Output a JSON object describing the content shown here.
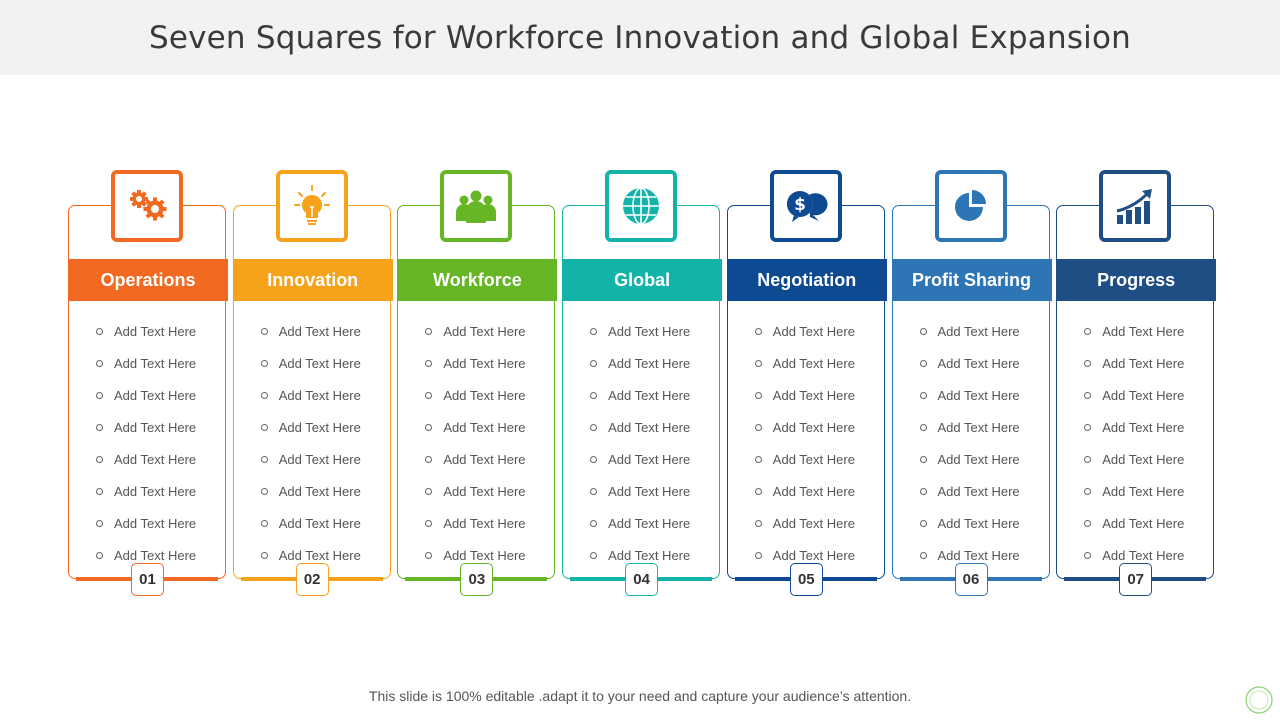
{
  "title": "Seven Squares for Workforce Innovation and Global Expansion",
  "columns": [
    {
      "label": "Operations",
      "number": "01",
      "color": "#f26a21",
      "icon": "gears-icon",
      "items": [
        "Add Text Here",
        "Add Text Here",
        "Add Text Here",
        "Add Text Here",
        "Add Text Here",
        "Add Text Here",
        "Add Text Here",
        "Add Text Here"
      ]
    },
    {
      "label": "Innovation",
      "number": "02",
      "color": "#f7a21b",
      "icon": "lightbulb-icon",
      "items": [
        "Add Text Here",
        "Add Text Here",
        "Add Text Here",
        "Add Text Here",
        "Add Text Here",
        "Add Text Here",
        "Add Text Here",
        "Add Text Here"
      ]
    },
    {
      "label": "Workforce",
      "number": "03",
      "color": "#67b626",
      "icon": "people-icon",
      "items": [
        "Add Text Here",
        "Add Text Here",
        "Add Text Here",
        "Add Text Here",
        "Add Text Here",
        "Add Text Here",
        "Add Text Here",
        "Add Text Here"
      ]
    },
    {
      "label": "Global",
      "number": "04",
      "color": "#13b3a9",
      "icon": "globe-icon",
      "items": [
        "Add Text Here",
        "Add Text Here",
        "Add Text Here",
        "Add Text Here",
        "Add Text Here",
        "Add Text Here",
        "Add Text Here",
        "Add Text Here"
      ]
    },
    {
      "label": "Negotiation",
      "number": "05",
      "color": "#0d4a91",
      "icon": "dollar-chat-icon",
      "items": [
        "Add Text Here",
        "Add Text Here",
        "Add Text Here",
        "Add Text Here",
        "Add Text Here",
        "Add Text Here",
        "Add Text Here",
        "Add Text Here"
      ]
    },
    {
      "label": "Profit Sharing",
      "number": "06",
      "color": "#2e75b6",
      "icon": "pie-chart-icon",
      "items": [
        "Add Text Here",
        "Add Text Here",
        "Add Text Here",
        "Add Text Here",
        "Add Text Here",
        "Add Text Here",
        "Add Text Here",
        "Add Text Here"
      ]
    },
    {
      "label": "Progress",
      "number": "07",
      "color": "#1f4e84",
      "icon": "growth-chart-icon",
      "items": [
        "Add Text Here",
        "Add Text Here",
        "Add Text Here",
        "Add Text Here",
        "Add Text Here",
        "Add Text Here",
        "Add Text Here",
        "Add Text Here"
      ]
    }
  ],
  "footer": "This slide is 100% editable .adapt it to your need and capture your audience’s attention."
}
